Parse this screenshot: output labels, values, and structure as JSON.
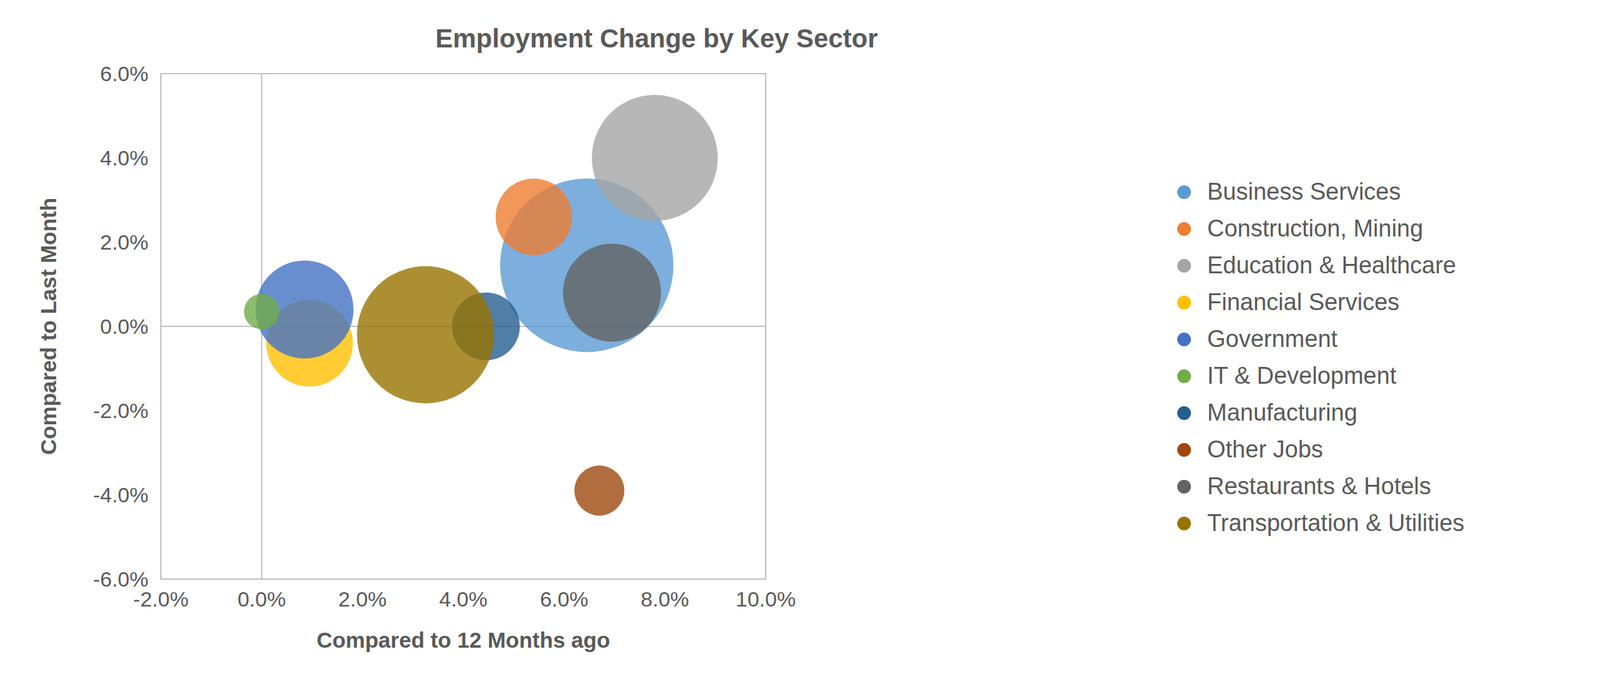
{
  "chart_data": {
    "type": "bubble",
    "title": "Employment Change by Key Sector",
    "x_label": "Compared to 12 Months ago",
    "y_label": "Compared to Last Month",
    "xlim": [
      -2,
      10
    ],
    "xticks": [
      {
        "value": -2,
        "label": "-2.0%"
      },
      {
        "value": 0,
        "label": "0.0%"
      },
      {
        "value": 2,
        "label": "2.0%"
      },
      {
        "value": 4,
        "label": "4.0%"
      },
      {
        "value": 6,
        "label": "6.0%"
      },
      {
        "value": 8,
        "label": "8.0%"
      },
      {
        "value": 10,
        "label": "10.0%"
      }
    ],
    "ylim": [
      -6,
      6
    ],
    "yticks": [
      {
        "value": -6,
        "label": "-6.0%"
      },
      {
        "value": -4,
        "label": "-4.0%"
      },
      {
        "value": -2,
        "label": "-2.0%"
      },
      {
        "value": 0,
        "label": "0.0%"
      },
      {
        "value": 2,
        "label": "2.0%"
      },
      {
        "value": 4,
        "label": "4.0%"
      },
      {
        "value": 6,
        "label": "6.0%"
      }
    ],
    "grid": false,
    "legend": "right",
    "series": [
      {
        "name": "Business Services",
        "color": "#5b9bd5",
        "x": [
          6.45
        ],
        "values": [
          1.45
        ],
        "size": [
          72
        ]
      },
      {
        "name": "Construction, Mining",
        "color": "#ed7d31",
        "x": [
          5.4
        ],
        "values": [
          2.6
        ],
        "size": [
          14
        ]
      },
      {
        "name": "Education & Healthcare",
        "color": "#a5a5a5",
        "x": [
          7.8
        ],
        "values": [
          4.0
        ],
        "size": [
          38
        ]
      },
      {
        "name": "Financial Services",
        "color": "#ffc000",
        "x": [
          0.95
        ],
        "values": [
          -0.4
        ],
        "size": [
          18
        ]
      },
      {
        "name": "Government",
        "color": "#4472c4",
        "x": [
          0.85
        ],
        "values": [
          0.4
        ],
        "size": [
          23
        ]
      },
      {
        "name": "IT & Development",
        "color": "#70ad47",
        "x": [
          0.0
        ],
        "values": [
          0.35
        ],
        "size": [
          3
        ]
      },
      {
        "name": "Manufacturing",
        "color": "#255e91",
        "x": [
          4.45
        ],
        "values": [
          0.0
        ],
        "size": [
          11
        ]
      },
      {
        "name": "Other Jobs",
        "color": "#9e480e",
        "x": [
          6.7
        ],
        "values": [
          -3.9
        ],
        "size": [
          6
        ]
      },
      {
        "name": "Restaurants & Hotels",
        "color": "#636363",
        "x": [
          6.95
        ],
        "values": [
          0.8
        ],
        "size": [
          23
        ]
      },
      {
        "name": "Transportation & Utilities",
        "color": "#997300",
        "x": [
          3.25
        ],
        "values": [
          -0.2
        ],
        "size": [
          45
        ]
      }
    ]
  }
}
